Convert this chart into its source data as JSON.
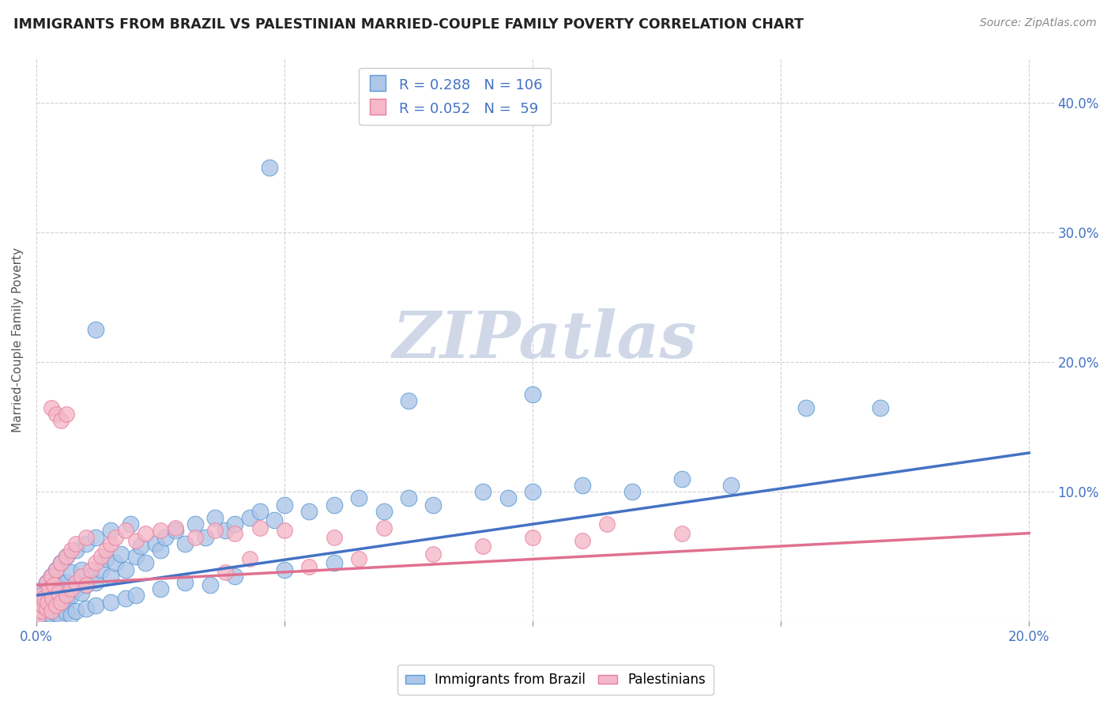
{
  "title": "IMMIGRANTS FROM BRAZIL VS PALESTINIAN MARRIED-COUPLE FAMILY POVERTY CORRELATION CHART",
  "source": "Source: ZipAtlas.com",
  "ylabel": "Married-Couple Family Poverty",
  "legend_labels": [
    "Immigrants from Brazil",
    "Palestinians"
  ],
  "legend_R": [
    0.288,
    0.052
  ],
  "legend_N": [
    106,
    59
  ],
  "blue_color": "#aec6e8",
  "blue_edge_color": "#5b9bd5",
  "blue_line_color": "#4472c4",
  "pink_color": "#f4b8c8",
  "pink_edge_color": "#e87fa0",
  "pink_line_color": "#e07090",
  "xlim": [
    0.0,
    0.205
  ],
  "ylim": [
    0.0,
    0.435
  ],
  "xticks": [
    0.0,
    0.05,
    0.1,
    0.15,
    0.2
  ],
  "yticks": [
    0.0,
    0.1,
    0.2,
    0.3,
    0.4
  ],
  "right_ytick_labels": [
    "",
    "10.0%",
    "20.0%",
    "30.0%",
    "40.0%"
  ],
  "xtick_labels": [
    "0.0%",
    "",
    "",
    "",
    "20.0%"
  ],
  "grid_color": "#cccccc",
  "background_color": "#ffffff",
  "brazil_x": [
    0.0008,
    0.001,
    0.001,
    0.0012,
    0.0013,
    0.0015,
    0.0015,
    0.002,
    0.002,
    0.002,
    0.0022,
    0.0025,
    0.003,
    0.003,
    0.003,
    0.0032,
    0.0035,
    0.004,
    0.004,
    0.0042,
    0.0045,
    0.005,
    0.005,
    0.005,
    0.006,
    0.006,
    0.006,
    0.007,
    0.007,
    0.008,
    0.008,
    0.009,
    0.009,
    0.01,
    0.01,
    0.011,
    0.012,
    0.012,
    0.013,
    0.014,
    0.015,
    0.015,
    0.016,
    0.017,
    0.018,
    0.019,
    0.02,
    0.021,
    0.022,
    0.024,
    0.025,
    0.026,
    0.028,
    0.03,
    0.032,
    0.034,
    0.036,
    0.038,
    0.04,
    0.043,
    0.045,
    0.048,
    0.05,
    0.055,
    0.06,
    0.065,
    0.07,
    0.075,
    0.08,
    0.09,
    0.095,
    0.1,
    0.11,
    0.12,
    0.13,
    0.14,
    0.001,
    0.0015,
    0.002,
    0.003,
    0.004,
    0.005,
    0.006,
    0.007,
    0.008,
    0.01,
    0.012,
    0.015,
    0.018,
    0.02,
    0.025,
    0.03,
    0.035,
    0.04,
    0.05,
    0.06,
    0.012,
    0.047,
    0.17,
    0.155,
    0.1,
    0.075
  ],
  "brazil_y": [
    0.005,
    0.01,
    0.02,
    0.008,
    0.015,
    0.012,
    0.025,
    0.01,
    0.018,
    0.03,
    0.015,
    0.022,
    0.008,
    0.02,
    0.035,
    0.012,
    0.028,
    0.015,
    0.04,
    0.02,
    0.03,
    0.01,
    0.025,
    0.045,
    0.015,
    0.03,
    0.05,
    0.02,
    0.038,
    0.025,
    0.055,
    0.022,
    0.04,
    0.028,
    0.06,
    0.035,
    0.03,
    0.065,
    0.04,
    0.048,
    0.035,
    0.07,
    0.045,
    0.052,
    0.04,
    0.075,
    0.05,
    0.058,
    0.045,
    0.06,
    0.055,
    0.065,
    0.07,
    0.06,
    0.075,
    0.065,
    0.08,
    0.07,
    0.075,
    0.08,
    0.085,
    0.078,
    0.09,
    0.085,
    0.09,
    0.095,
    0.085,
    0.095,
    0.09,
    0.1,
    0.095,
    0.1,
    0.105,
    0.1,
    0.11,
    0.105,
    0.002,
    0.004,
    0.003,
    0.005,
    0.006,
    0.004,
    0.007,
    0.005,
    0.008,
    0.01,
    0.012,
    0.015,
    0.018,
    0.02,
    0.025,
    0.03,
    0.028,
    0.035,
    0.04,
    0.045,
    0.225,
    0.35,
    0.165,
    0.165,
    0.175,
    0.17
  ],
  "pal_x": [
    0.0005,
    0.001,
    0.001,
    0.0012,
    0.0015,
    0.002,
    0.002,
    0.0022,
    0.0025,
    0.003,
    0.003,
    0.0032,
    0.0035,
    0.004,
    0.004,
    0.0045,
    0.005,
    0.005,
    0.006,
    0.006,
    0.007,
    0.007,
    0.008,
    0.008,
    0.009,
    0.01,
    0.01,
    0.011,
    0.012,
    0.013,
    0.014,
    0.015,
    0.016,
    0.018,
    0.02,
    0.022,
    0.025,
    0.028,
    0.032,
    0.036,
    0.04,
    0.045,
    0.05,
    0.06,
    0.07,
    0.003,
    0.004,
    0.005,
    0.006,
    0.1,
    0.115,
    0.038,
    0.043,
    0.055,
    0.065,
    0.08,
    0.09,
    0.11,
    0.13
  ],
  "pal_y": [
    0.005,
    0.008,
    0.02,
    0.012,
    0.018,
    0.01,
    0.03,
    0.015,
    0.025,
    0.008,
    0.035,
    0.018,
    0.028,
    0.012,
    0.04,
    0.022,
    0.015,
    0.045,
    0.02,
    0.05,
    0.025,
    0.055,
    0.03,
    0.06,
    0.035,
    0.028,
    0.065,
    0.04,
    0.045,
    0.05,
    0.055,
    0.06,
    0.065,
    0.07,
    0.062,
    0.068,
    0.07,
    0.072,
    0.065,
    0.07,
    0.068,
    0.072,
    0.07,
    0.065,
    0.072,
    0.165,
    0.16,
    0.155,
    0.16,
    0.065,
    0.075,
    0.038,
    0.048,
    0.042,
    0.048,
    0.052,
    0.058,
    0.062,
    0.068
  ],
  "brazil_line_x": [
    0.0,
    0.2
  ],
  "brazil_line_y": [
    0.02,
    0.13
  ],
  "pal_line_x": [
    0.0,
    0.2
  ],
  "pal_line_y": [
    0.028,
    0.068
  ],
  "watermark_text": "ZIPatlas",
  "watermark_color": "#d0d8e8",
  "watermark_fontsize": 60
}
